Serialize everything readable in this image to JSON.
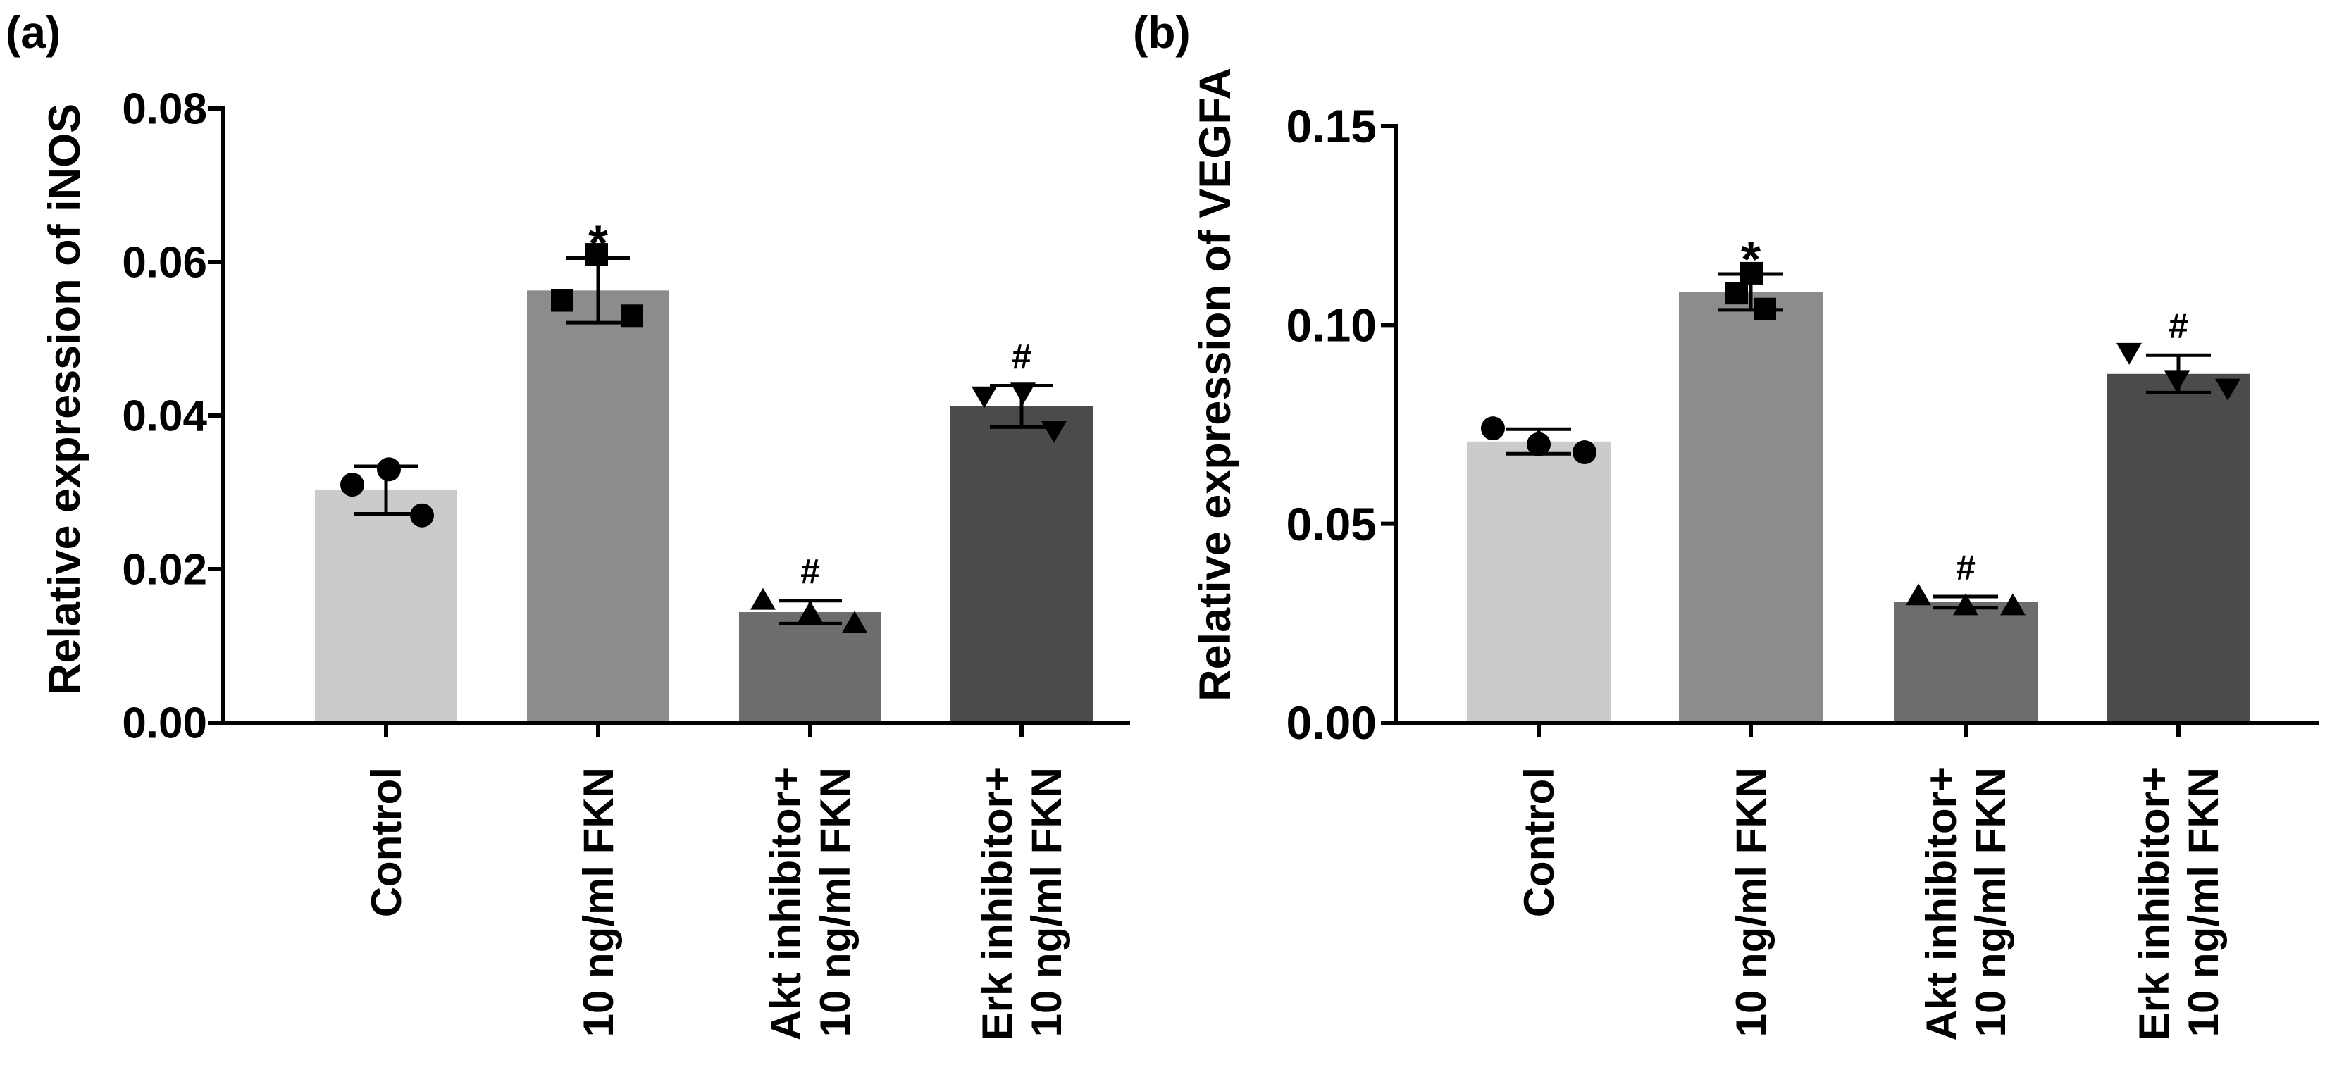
{
  "chart_data": [
    {
      "type": "bar",
      "panel_label": "(a)",
      "ylabel": "Relative expression of iNOS",
      "ylim": [
        0,
        0.08
      ],
      "yticks": [
        0,
        0.02,
        0.04,
        0.06,
        0.08
      ],
      "ytick_labels": [
        "0.00",
        "0.02",
        "0.04",
        "0.06",
        "0.08"
      ],
      "categories": [
        [
          "Control"
        ],
        [
          "10 ng/ml FKN"
        ],
        [
          "Akt inhibitor+",
          "10 ng/ml FKN"
        ],
        [
          "Erk inhibitor+",
          "10 ng/ml FKN"
        ]
      ],
      "values": [
        0.0303,
        0.0563,
        0.0144,
        0.0412
      ],
      "errors": [
        0.0031,
        0.0042,
        0.0015,
        0.0027
      ],
      "points": [
        [
          0.031,
          0.033,
          0.027
        ],
        [
          0.055,
          0.061,
          0.053
        ],
        [
          0.016,
          0.0143,
          0.013
        ],
        [
          0.0425,
          0.043,
          0.038
        ]
      ],
      "markers": [
        "circle",
        "square",
        "triangle-up",
        "triangle-down"
      ],
      "annotations": [
        null,
        "*",
        "#",
        "#"
      ],
      "colors": [
        "#cbcbcb",
        "#8c8c8c",
        "#6d6d6d",
        "#4b4b4b"
      ]
    },
    {
      "type": "bar",
      "panel_label": "(b)",
      "ylabel": "Relative expression of VEGFA",
      "ylim": [
        0,
        0.15
      ],
      "yticks": [
        0,
        0.05,
        0.1,
        0.15
      ],
      "ytick_labels": [
        "0.00",
        "0.05",
        "0.10",
        "0.15"
      ],
      "categories": [
        [
          "Control"
        ],
        [
          "10 ng/ml FKN"
        ],
        [
          "Akt inhibitor+",
          "10 ng/ml FKN"
        ],
        [
          "Erk inhibitor+",
          "10 ng/ml FKN"
        ]
      ],
      "values": [
        0.0707,
        0.1083,
        0.0303,
        0.0877
      ],
      "errors": [
        0.0031,
        0.0045,
        0.0014,
        0.0047
      ],
      "points": [
        [
          0.074,
          0.07,
          0.068
        ],
        [
          0.108,
          0.113,
          0.104
        ],
        [
          0.032,
          0.0295,
          0.0295
        ],
        [
          0.093,
          0.086,
          0.084
        ]
      ],
      "markers": [
        "circle",
        "square",
        "triangle-up",
        "triangle-down"
      ],
      "annotations": [
        null,
        "*",
        "#",
        "#"
      ],
      "colors": [
        "#cbcbcb",
        "#8c8c8c",
        "#6d6d6d",
        "#4b4b4b"
      ]
    }
  ]
}
